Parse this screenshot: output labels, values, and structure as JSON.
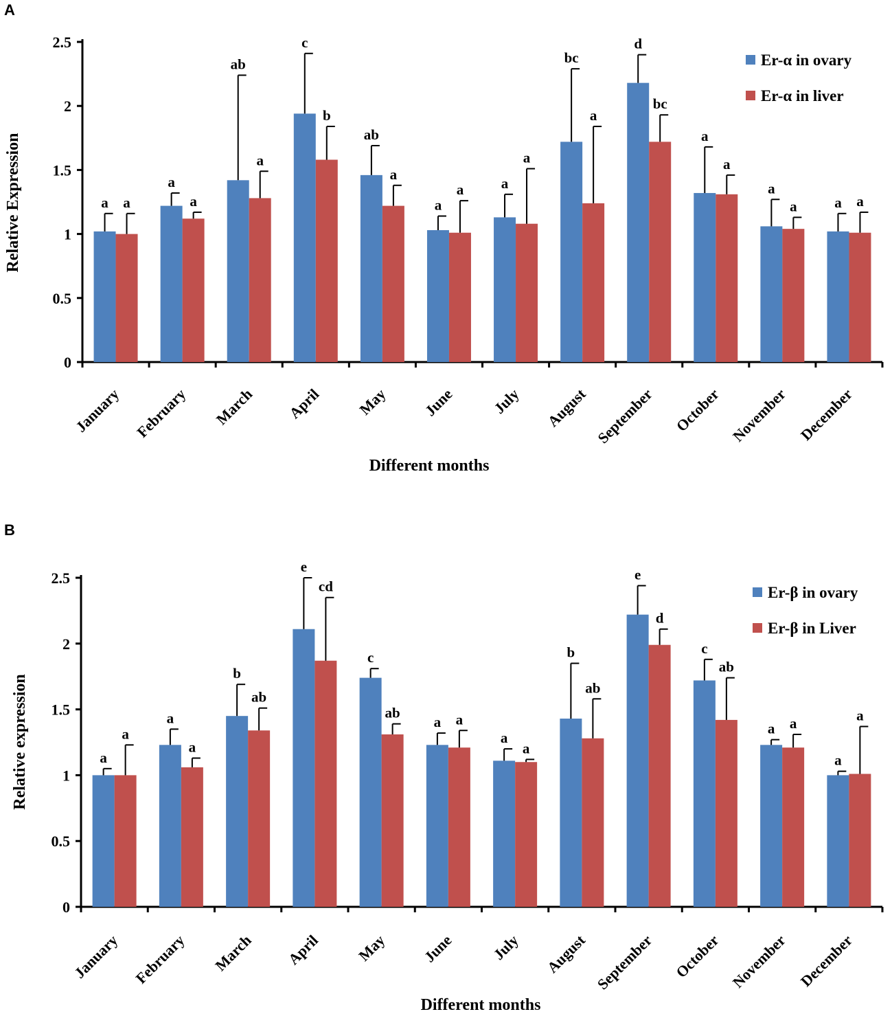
{
  "chart_data": [
    {
      "panel": "A",
      "type": "bar",
      "title": "",
      "xlabel": "Different months",
      "ylabel": "Relative Expression",
      "ylim": [
        0,
        2.5
      ],
      "yticks": [
        "0",
        "0.5",
        "1",
        "1.5",
        "2",
        "2.5"
      ],
      "categories": [
        "January",
        "February",
        "March",
        "April",
        "May",
        "June",
        "July",
        "August",
        "September",
        "October",
        "November",
        "December"
      ],
      "series": [
        {
          "name": "Er-α in ovary",
          "color": "#4f81bd",
          "values": [
            1.02,
            1.22,
            1.42,
            1.94,
            1.46,
            1.03,
            1.13,
            1.72,
            2.18,
            1.32,
            1.06,
            1.02
          ],
          "errors": [
            0.14,
            0.1,
            0.82,
            0.47,
            0.23,
            0.11,
            0.18,
            0.57,
            0.22,
            0.36,
            0.21,
            0.14
          ],
          "labels": [
            "a",
            "a",
            "ab",
            "c",
            "ab",
            "a",
            "a",
            "bc",
            "d",
            "a",
            "a",
            "a"
          ]
        },
        {
          "name": "Er-α in liver",
          "color": "#c0504d",
          "values": [
            1.0,
            1.12,
            1.28,
            1.58,
            1.22,
            1.01,
            1.08,
            1.24,
            1.72,
            1.31,
            1.04,
            1.01
          ],
          "errors": [
            0.16,
            0.05,
            0.21,
            0.26,
            0.16,
            0.25,
            0.43,
            0.6,
            0.21,
            0.15,
            0.09,
            0.16
          ],
          "labels": [
            "a",
            "a",
            "a",
            "b",
            "a",
            "a",
            "a",
            "a",
            "bc",
            "a",
            "a",
            "a"
          ]
        }
      ],
      "legend_position": "top-right"
    },
    {
      "panel": "B",
      "type": "bar",
      "title": "",
      "xlabel": "Different months",
      "ylabel": "Relative expression",
      "ylim": [
        0,
        2.5
      ],
      "yticks": [
        "0",
        "0.5",
        "1",
        "1.5",
        "2",
        "2.5"
      ],
      "categories": [
        "January",
        "February",
        "March",
        "April",
        "May",
        "June",
        "July",
        "August",
        "September",
        "October",
        "November",
        "December"
      ],
      "series": [
        {
          "name": "Er-β in ovary",
          "color": "#4f81bd",
          "values": [
            1.0,
            1.23,
            1.45,
            2.11,
            1.74,
            1.23,
            1.11,
            1.43,
            2.22,
            1.72,
            1.23,
            1.0
          ],
          "errors": [
            0.05,
            0.12,
            0.24,
            0.39,
            0.07,
            0.09,
            0.09,
            0.42,
            0.22,
            0.16,
            0.04,
            0.03
          ],
          "labels": [
            "a",
            "a",
            "b",
            "e",
            "c",
            "a",
            "a",
            "b",
            "e",
            "c",
            "a",
            "a"
          ]
        },
        {
          "name": "Er-β in Liver",
          "color": "#c0504d",
          "values": [
            1.0,
            1.06,
            1.34,
            1.87,
            1.31,
            1.21,
            1.1,
            1.28,
            1.99,
            1.42,
            1.21,
            1.01
          ],
          "errors": [
            0.23,
            0.07,
            0.17,
            0.48,
            0.08,
            0.13,
            0.02,
            0.3,
            0.12,
            0.32,
            0.1,
            0.36
          ],
          "labels": [
            "a",
            "a",
            "ab",
            "cd",
            "ab",
            "a",
            "a",
            "ab",
            "d",
            "ab",
            "a",
            "a"
          ]
        }
      ],
      "legend_position": "top-right"
    }
  ]
}
